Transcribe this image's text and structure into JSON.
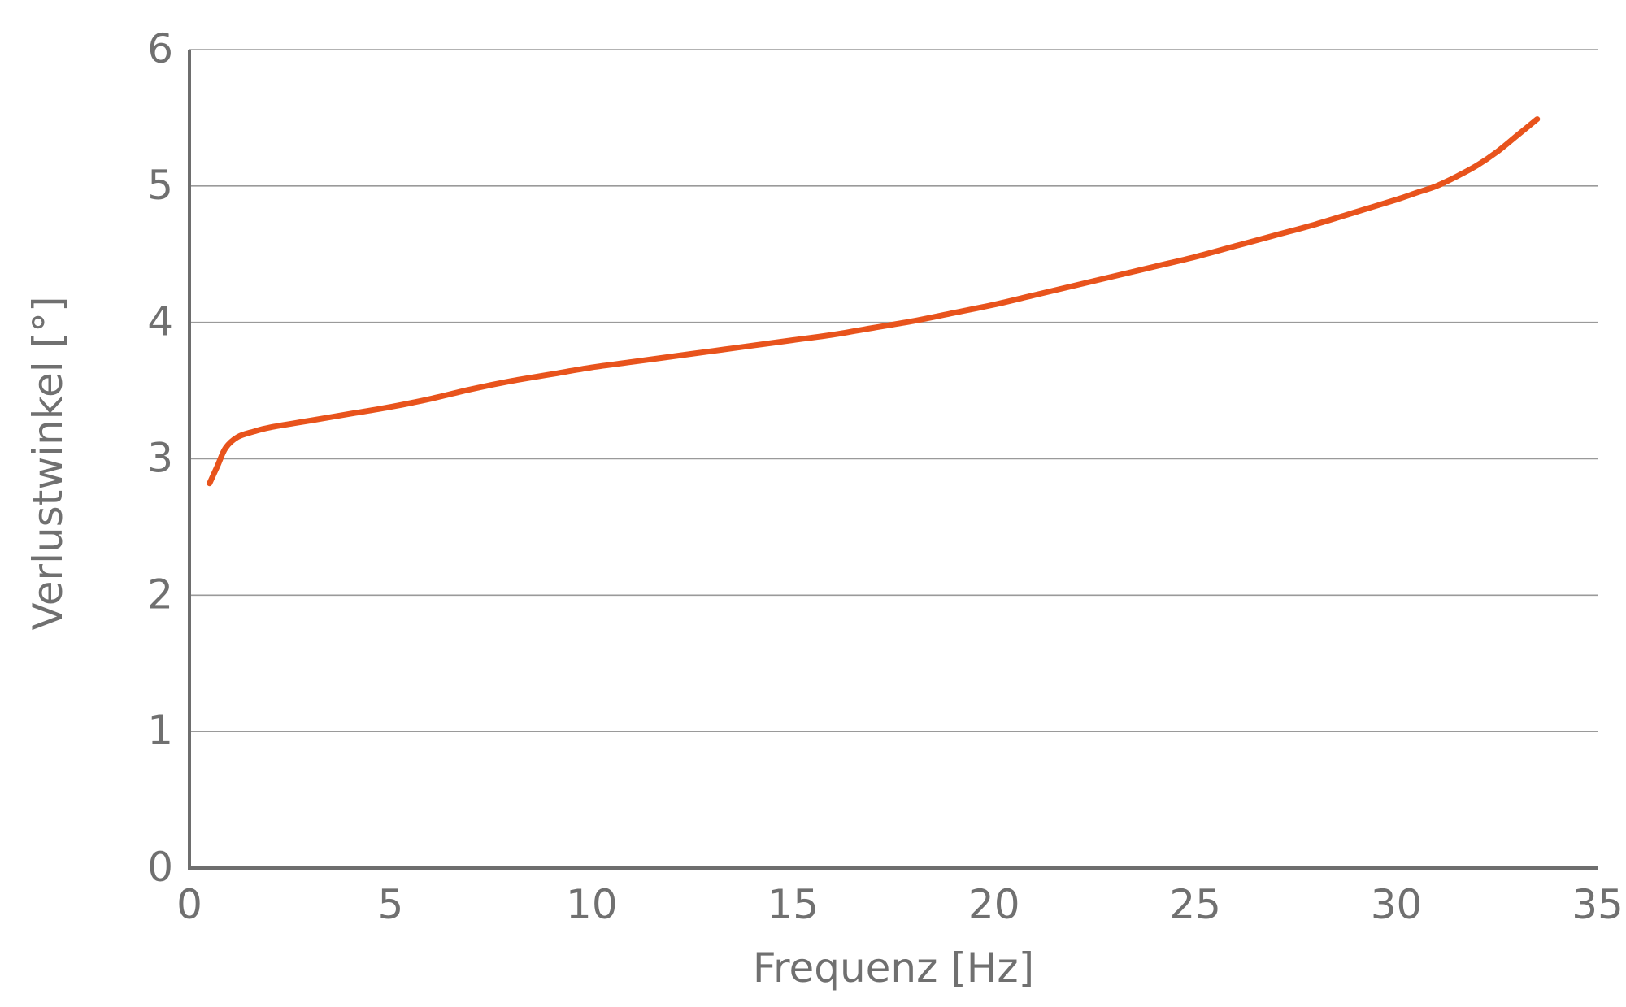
{
  "chart_data": {
    "type": "line",
    "xlabel": "Frequenz [Hz]",
    "ylabel": "Verlustwinkel [°]",
    "xlim": [
      0,
      35
    ],
    "ylim": [
      0,
      6
    ],
    "xticks": [
      "0",
      "5",
      "10",
      "15",
      "20",
      "25",
      "30",
      "35"
    ],
    "yticks": [
      "0",
      "1",
      "2",
      "3",
      "4",
      "5",
      "6"
    ],
    "grid": "horizontal",
    "line_color": "#E8531C",
    "series": [
      {
        "x": [
          0.5,
          0.7,
          0.9,
          1.2,
          1.6,
          2.0,
          3.0,
          4.0,
          5.0,
          6.0,
          7.0,
          8.0,
          9.0,
          10.0,
          11.0,
          12.0,
          13.0,
          14.0,
          15.0,
          16.0,
          17.0,
          18.0,
          19.0,
          20.0,
          21.0,
          22.0,
          23.0,
          24.0,
          25.0,
          26.0,
          27.0,
          28.0,
          29.0,
          30.0,
          30.5,
          31.0,
          31.5,
          32.0,
          32.5,
          33.0,
          33.5
        ],
        "values": [
          2.82,
          2.95,
          3.08,
          3.16,
          3.2,
          3.23,
          3.28,
          3.33,
          3.38,
          3.44,
          3.51,
          3.57,
          3.62,
          3.67,
          3.71,
          3.75,
          3.79,
          3.83,
          3.87,
          3.91,
          3.96,
          4.01,
          4.07,
          4.13,
          4.2,
          4.27,
          4.34,
          4.41,
          4.48,
          4.56,
          4.64,
          4.72,
          4.81,
          4.9,
          4.95,
          5.0,
          5.07,
          5.15,
          5.25,
          5.37,
          5.49
        ]
      }
    ]
  }
}
